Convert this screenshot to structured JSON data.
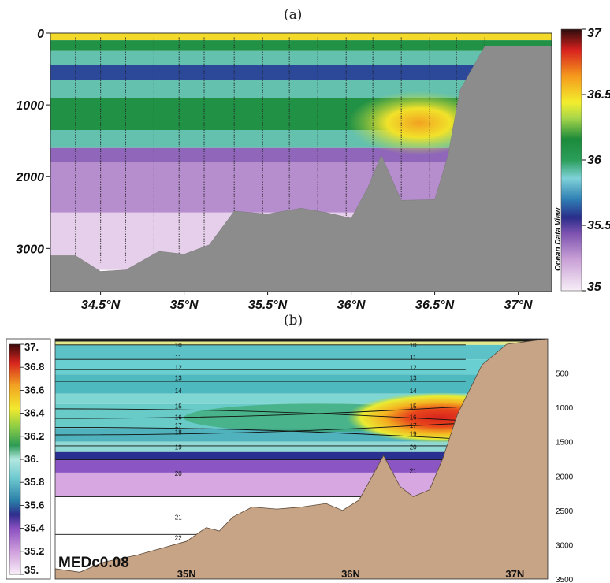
{
  "chart_data": [
    {
      "panel_label": "(a)",
      "type": "heatmap",
      "variable": "salinity section",
      "ylabel_values": [
        0,
        1000,
        2000,
        3000
      ],
      "yticks": [
        "0",
        "1000",
        "2000",
        "3000"
      ],
      "xticks": [
        "34.5°N",
        "35°N",
        "35.5°N",
        "36°N",
        "36.5°N",
        "37°N"
      ],
      "xlim": [
        34.2,
        37.2
      ],
      "ylim": [
        3600,
        0
      ],
      "colorbar": {
        "ticks": [
          "37",
          "36.5",
          "36",
          "35.5",
          "35"
        ],
        "range": [
          35,
          37
        ],
        "side_label": "Ocean Data View"
      },
      "layers": [
        {
          "depth_range": [
            0,
            100
          ],
          "salinity": 36.5
        },
        {
          "depth_range": [
            100,
            250
          ],
          "salinity": 36.1
        },
        {
          "depth_range": [
            250,
            450
          ],
          "salinity": 35.9
        },
        {
          "depth_range": [
            450,
            650
          ],
          "salinity": 35.6
        },
        {
          "depth_range": [
            650,
            900
          ],
          "salinity": 35.9
        },
        {
          "depth_range": [
            900,
            1350
          ],
          "salinity": 36.1
        },
        {
          "depth_range": [
            1350,
            1600
          ],
          "salinity": 35.9
        },
        {
          "depth_range": [
            1600,
            1800
          ],
          "salinity": 35.4
        },
        {
          "depth_range": [
            1800,
            2500
          ],
          "salinity": 35.3
        },
        {
          "depth_range": [
            2500,
            3300
          ],
          "salinity": 35.1
        }
      ],
      "core": {
        "lat": 36.5,
        "depth": 1250,
        "salinity": 36.7
      },
      "bathymetry": [
        [
          34.2,
          3100
        ],
        [
          34.35,
          3100
        ],
        [
          34.5,
          3320
        ],
        [
          34.65,
          3300
        ],
        [
          34.85,
          3040
        ],
        [
          35.0,
          3080
        ],
        [
          35.15,
          2950
        ],
        [
          35.3,
          2480
        ],
        [
          35.5,
          2520
        ],
        [
          35.7,
          2440
        ],
        [
          35.85,
          2500
        ],
        [
          36.0,
          2580
        ],
        [
          36.1,
          2150
        ],
        [
          36.18,
          1700
        ],
        [
          36.3,
          2330
        ],
        [
          36.5,
          2320
        ],
        [
          36.58,
          1700
        ],
        [
          36.65,
          800
        ],
        [
          36.8,
          180
        ],
        [
          37.1,
          180
        ],
        [
          37.2,
          180
        ]
      ],
      "stations": [
        34.35,
        34.5,
        34.65,
        34.82,
        34.97,
        35.12,
        35.3,
        35.47,
        35.63,
        35.8,
        35.97,
        36.13,
        36.3,
        36.47,
        36.63,
        36.8
      ]
    },
    {
      "panel_label": "(b)",
      "type": "heatmap",
      "variable": "salinity section",
      "model_label": "MEDc0.08",
      "yticks": [
        "500",
        "1000",
        "1500",
        "2000",
        "2500",
        "3000",
        "3500"
      ],
      "ylabel_values": [
        500,
        1000,
        1500,
        2000,
        2500,
        3000,
        3500
      ],
      "xticks": [
        "35N",
        "36N",
        "37N"
      ],
      "xlim": [
        34.2,
        37.2
      ],
      "ylim": [
        3500,
        0
      ],
      "colorbar": {
        "ticks": [
          "37.",
          "36.8",
          "36.6",
          "36.4",
          "36.2",
          "36.",
          "35.8",
          "35.6",
          "35.4",
          "35.2",
          "35."
        ],
        "range": [
          35,
          37
        ]
      },
      "isopycnal_labels_left": [
        "10",
        "11",
        "12",
        "13",
        "14",
        "15",
        "16",
        "17",
        "18",
        "19",
        "20",
        "21",
        "22"
      ],
      "isopycnal_labels_right": [
        "10",
        "11",
        "12",
        "13",
        "14",
        "15",
        "16",
        "17",
        "19",
        "20",
        "21"
      ],
      "core": {
        "lat": 36.5,
        "depth": 1100,
        "salinity": 36.85
      },
      "bathymetry": [
        [
          34.2,
          3350
        ],
        [
          34.35,
          3400
        ],
        [
          34.5,
          3250
        ],
        [
          34.7,
          3150
        ],
        [
          34.85,
          3050
        ],
        [
          35.0,
          2950
        ],
        [
          35.12,
          2750
        ],
        [
          35.2,
          2800
        ],
        [
          35.28,
          2600
        ],
        [
          35.4,
          2450
        ],
        [
          35.55,
          2480
        ],
        [
          35.7,
          2450
        ],
        [
          35.85,
          2400
        ],
        [
          35.95,
          2500
        ],
        [
          36.05,
          2350
        ],
        [
          36.12,
          2050
        ],
        [
          36.2,
          1700
        ],
        [
          36.3,
          2150
        ],
        [
          36.38,
          2300
        ],
        [
          36.48,
          2200
        ],
        [
          36.56,
          1750
        ],
        [
          36.65,
          1100
        ],
        [
          36.8,
          380
        ],
        [
          36.95,
          80
        ],
        [
          37.2,
          0
        ]
      ]
    }
  ]
}
